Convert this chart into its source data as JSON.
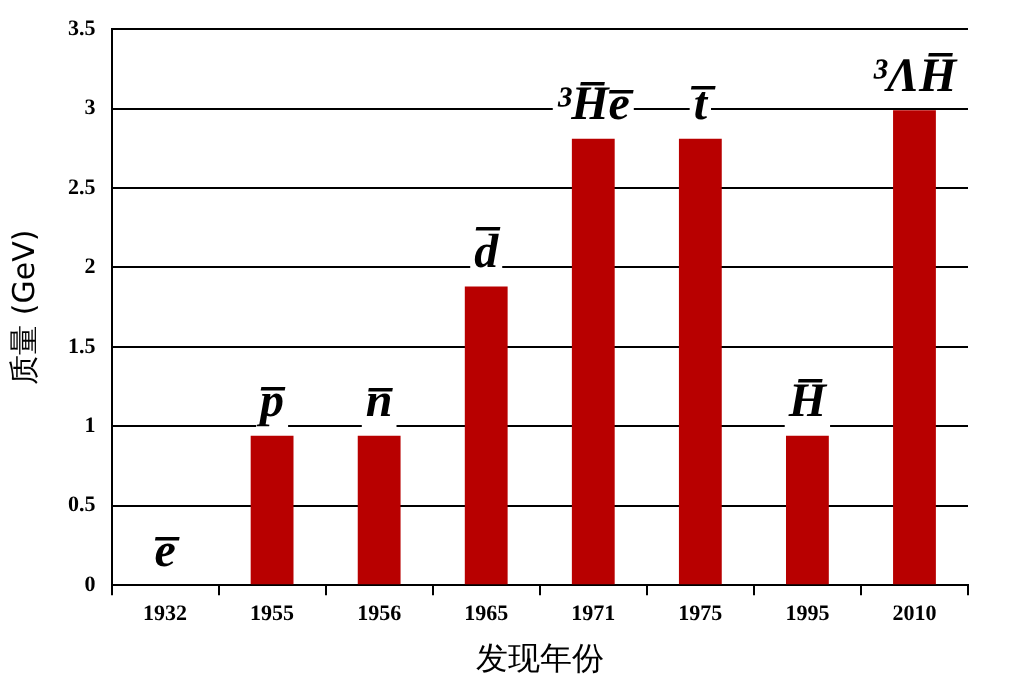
{
  "chart_data": {
    "type": "bar",
    "xlabel": "发现年份",
    "ylabel": "质量 (GeV)",
    "categories": [
      "1932",
      "1955",
      "1956",
      "1965",
      "1971",
      "1975",
      "1995",
      "2010"
    ],
    "values": [
      0,
      0.94,
      0.94,
      1.88,
      2.81,
      2.81,
      0.94,
      2.99
    ],
    "color": "#b80000",
    "ylim": [
      0,
      3.5
    ],
    "yticks": [
      0,
      {
        "value": 0.5,
        "label": "0.5"
      },
      1,
      {
        "value": 1.5,
        "label": "1.5"
      },
      2,
      {
        "value": 2.5,
        "label": "2.5"
      },
      3,
      {
        "value": 3.5,
        "label": "3.5"
      }
    ],
    "grid": "y",
    "legend": false,
    "annotations": [
      {
        "text": "e̅",
        "x": "1932",
        "y": 0
      },
      {
        "text": "p̅",
        "x": "1955",
        "y": 0.94
      },
      {
        "text": "n̅",
        "x": "1956",
        "y": 0.94
      },
      {
        "text": "d̅",
        "x": "1965",
        "y": 1.88
      },
      {
        "text": "³H̅e̅",
        "x": "1971",
        "y": 2.81
      },
      {
        "text": "t̅",
        "x": "1975",
        "y": 2.81
      },
      {
        "text": "H̅",
        "x": "1995",
        "y": 0.94
      },
      {
        "text": "³ΛH̅",
        "x": "2010",
        "y": 2.99
      }
    ]
  }
}
